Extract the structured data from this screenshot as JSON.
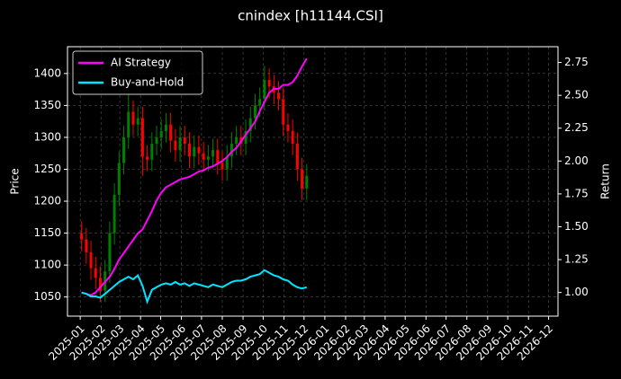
{
  "chart_data": {
    "type": "candlestick",
    "title": "cnindex [h11144.CSI]",
    "ylabel": "Price",
    "y2label": "Return",
    "x": [
      "2025-01-03",
      "2025-01-10",
      "2025-01-17",
      "2025-01-24",
      "2025-01-31",
      "2025-02-07",
      "2025-02-14",
      "2025-02-21",
      "2025-02-28",
      "2025-03-07",
      "2025-03-14",
      "2025-03-21",
      "2025-03-28",
      "2025-04-04",
      "2025-04-11",
      "2025-04-18",
      "2025-04-25",
      "2025-05-02",
      "2025-05-09",
      "2025-05-16",
      "2025-05-23",
      "2025-05-30",
      "2025-06-06",
      "2025-06-13",
      "2025-06-20",
      "2025-06-27",
      "2025-07-04",
      "2025-07-11",
      "2025-07-18",
      "2025-07-25",
      "2025-08-01",
      "2025-08-08",
      "2025-08-15",
      "2025-08-22",
      "2025-08-29",
      "2025-09-05",
      "2025-09-12",
      "2025-09-19",
      "2025-09-26",
      "2025-10-03",
      "2025-10-10",
      "2025-10-17",
      "2025-10-24",
      "2025-10-31",
      "2025-11-07",
      "2025-11-14",
      "2025-11-21",
      "2025-11-28",
      "2025-12-05"
    ],
    "open": [
      1150,
      1140,
      1120,
      1095,
      1080,
      1060,
      1090,
      1150,
      1210,
      1260,
      1300,
      1340,
      1320,
      1330,
      1270,
      1265,
      1290,
      1300,
      1310,
      1320,
      1295,
      1280,
      1300,
      1290,
      1270,
      1285,
      1275,
      1265,
      1270,
      1280,
      1260,
      1250,
      1270,
      1290,
      1300,
      1290,
      1310,
      1330,
      1350,
      1360,
      1390,
      1380,
      1370,
      1360,
      1320,
      1310,
      1290,
      1250,
      1220
    ],
    "high": [
      1168,
      1158,
      1138,
      1113,
      1098,
      1108,
      1168,
      1228,
      1278,
      1318,
      1370,
      1358,
      1348,
      1348,
      1288,
      1308,
      1318,
      1328,
      1338,
      1338,
      1313,
      1318,
      1318,
      1308,
      1303,
      1303,
      1293,
      1288,
      1298,
      1298,
      1278,
      1288,
      1308,
      1318,
      1318,
      1328,
      1348,
      1368,
      1378,
      1412,
      1408,
      1398,
      1388,
      1378,
      1338,
      1328,
      1308,
      1268,
      1258
    ],
    "low": [
      1122,
      1102,
      1077,
      1062,
      1042,
      1042,
      1072,
      1132,
      1192,
      1242,
      1282,
      1302,
      1302,
      1240,
      1247,
      1247,
      1272,
      1282,
      1292,
      1277,
      1262,
      1262,
      1272,
      1252,
      1252,
      1257,
      1247,
      1247,
      1252,
      1242,
      1232,
      1232,
      1252,
      1272,
      1272,
      1272,
      1292,
      1312,
      1332,
      1342,
      1362,
      1352,
      1342,
      1302,
      1292,
      1272,
      1232,
      1202,
      1202
    ],
    "close": [
      1140,
      1120,
      1095,
      1080,
      1060,
      1090,
      1150,
      1210,
      1260,
      1300,
      1340,
      1320,
      1330,
      1270,
      1265,
      1290,
      1300,
      1310,
      1320,
      1295,
      1280,
      1300,
      1290,
      1270,
      1285,
      1275,
      1265,
      1270,
      1280,
      1260,
      1250,
      1270,
      1290,
      1300,
      1290,
      1310,
      1330,
      1350,
      1360,
      1390,
      1380,
      1370,
      1360,
      1320,
      1310,
      1290,
      1250,
      1220,
      1240
    ],
    "up_color": "#008000",
    "down_color": "#ff0000",
    "series": [
      {
        "name": "AI Strategy",
        "color": "#ff00ff",
        "axis": "y2",
        "values": [
          1.0,
          0.99,
          0.98,
          1.0,
          1.04,
          1.08,
          1.12,
          1.18,
          1.25,
          1.3,
          1.35,
          1.4,
          1.45,
          1.48,
          1.55,
          1.62,
          1.7,
          1.76,
          1.8,
          1.82,
          1.84,
          1.86,
          1.87,
          1.88,
          1.9,
          1.92,
          1.93,
          1.95,
          1.96,
          1.98,
          2.0,
          2.03,
          2.07,
          2.1,
          2.15,
          2.2,
          2.25,
          2.3,
          2.38,
          2.45,
          2.52,
          2.55,
          2.55,
          2.58,
          2.58,
          2.6,
          2.65,
          2.72,
          2.78
        ]
      },
      {
        "name": "Buy-and-Hold",
        "color": "#00e5ff",
        "axis": "y2",
        "values": [
          1.0,
          0.99,
          0.97,
          0.97,
          0.96,
          0.99,
          1.02,
          1.05,
          1.08,
          1.1,
          1.12,
          1.1,
          1.13,
          1.05,
          0.93,
          1.02,
          1.04,
          1.06,
          1.07,
          1.06,
          1.08,
          1.06,
          1.07,
          1.05,
          1.07,
          1.06,
          1.05,
          1.04,
          1.06,
          1.05,
          1.04,
          1.06,
          1.08,
          1.09,
          1.09,
          1.1,
          1.12,
          1.13,
          1.14,
          1.17,
          1.15,
          1.13,
          1.12,
          1.1,
          1.09,
          1.06,
          1.04,
          1.03,
          1.04
        ]
      }
    ],
    "xlim": [
      "2024-12-13",
      "2026-12-15"
    ],
    "xticks": [
      {
        "value": "2025-01-01",
        "label": "2025-01"
      },
      {
        "value": "2025-02-01",
        "label": "2025-02"
      },
      {
        "value": "2025-03-01",
        "label": "2025-03"
      },
      {
        "value": "2025-04-01",
        "label": "2025-04"
      },
      {
        "value": "2025-05-01",
        "label": "2025-05"
      },
      {
        "value": "2025-06-01",
        "label": "2025-06"
      },
      {
        "value": "2025-07-01",
        "label": "2025-07"
      },
      {
        "value": "2025-08-01",
        "label": "2025-08"
      },
      {
        "value": "2025-09-01",
        "label": "2025-09"
      },
      {
        "value": "2025-10-01",
        "label": "2025-10"
      },
      {
        "value": "2025-11-01",
        "label": "2025-11"
      },
      {
        "value": "2025-12-01",
        "label": "2025-12"
      },
      {
        "value": "2026-01-01",
        "label": "2026-01"
      },
      {
        "value": "2026-02-01",
        "label": "2026-02"
      },
      {
        "value": "2026-03-01",
        "label": "2026-03"
      },
      {
        "value": "2026-04-01",
        "label": "2026-04"
      },
      {
        "value": "2026-05-01",
        "label": "2026-05"
      },
      {
        "value": "2026-06-01",
        "label": "2026-06"
      },
      {
        "value": "2026-07-01",
        "label": "2026-07"
      },
      {
        "value": "2026-08-01",
        "label": "2026-08"
      },
      {
        "value": "2026-09-01",
        "label": "2026-09"
      },
      {
        "value": "2026-10-01",
        "label": "2026-10"
      },
      {
        "value": "2026-11-01",
        "label": "2026-11"
      },
      {
        "value": "2026-12-01",
        "label": "2026-12"
      }
    ],
    "ylim": [
      1020,
      1442
    ],
    "yticks": [
      1050,
      1100,
      1150,
      1200,
      1250,
      1300,
      1350,
      1400
    ],
    "y2lim": [
      0.82,
      2.87
    ],
    "y2ticks": [
      {
        "value": 1.0,
        "label": "1.00"
      },
      {
        "value": 1.25,
        "label": "1.25"
      },
      {
        "value": 1.5,
        "label": "1.50"
      },
      {
        "value": 1.75,
        "label": "1.75"
      },
      {
        "value": 2.0,
        "label": "2.00"
      },
      {
        "value": 2.25,
        "label": "2.25"
      },
      {
        "value": 2.5,
        "label": "2.50"
      },
      {
        "value": 2.75,
        "label": "2.75"
      }
    ],
    "grid": true,
    "legend": "upper left"
  }
}
